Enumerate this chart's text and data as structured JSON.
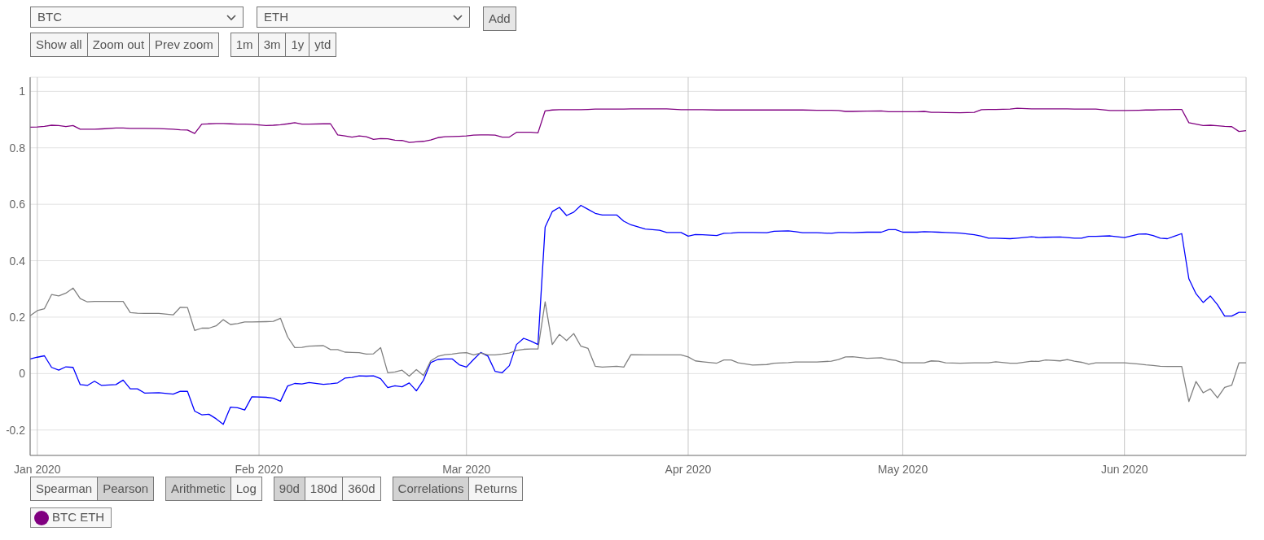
{
  "chart_data": {
    "type": "line",
    "x": [
      "2019-12-31",
      "2020-01-01",
      "2020-01-02",
      "2020-01-03",
      "2020-01-04",
      "2020-01-05",
      "2020-01-06",
      "2020-01-07",
      "2020-01-08",
      "2020-01-09",
      "2020-01-10",
      "2020-01-12",
      "2020-01-13",
      "2020-01-14",
      "2020-01-15",
      "2020-01-16",
      "2020-01-18",
      "2020-01-20",
      "2020-01-21",
      "2020-01-22",
      "2020-01-23",
      "2020-01-24",
      "2020-01-25",
      "2020-01-26",
      "2020-01-27",
      "2020-01-28",
      "2020-01-29",
      "2020-01-30",
      "2020-01-31",
      "2020-02-02",
      "2020-02-03",
      "2020-02-04",
      "2020-02-05",
      "2020-02-06",
      "2020-02-07",
      "2020-02-08",
      "2020-02-10",
      "2020-02-11",
      "2020-02-12",
      "2020-02-13",
      "2020-02-14",
      "2020-02-15",
      "2020-02-16",
      "2020-02-17",
      "2020-02-18",
      "2020-02-19",
      "2020-02-20",
      "2020-02-21",
      "2020-02-22",
      "2020-02-23",
      "2020-02-24",
      "2020-02-25",
      "2020-02-26",
      "2020-02-27",
      "2020-02-28",
      "2020-02-29",
      "2020-03-01",
      "2020-03-02",
      "2020-03-03",
      "2020-03-04",
      "2020-03-05",
      "2020-03-06",
      "2020-03-07",
      "2020-03-08",
      "2020-03-09",
      "2020-03-10",
      "2020-03-11",
      "2020-03-12",
      "2020-03-13",
      "2020-03-14",
      "2020-03-15",
      "2020-03-16",
      "2020-03-17",
      "2020-03-18",
      "2020-03-19",
      "2020-03-20",
      "2020-03-22",
      "2020-03-23",
      "2020-03-24",
      "2020-03-26",
      "2020-03-28",
      "2020-03-29",
      "2020-03-31",
      "2020-04-01",
      "2020-04-02",
      "2020-04-03",
      "2020-04-05",
      "2020-04-06",
      "2020-04-07",
      "2020-04-08",
      "2020-04-10",
      "2020-04-12",
      "2020-04-13",
      "2020-04-15",
      "2020-04-16",
      "2020-04-17",
      "2020-04-19",
      "2020-04-21",
      "2020-04-22",
      "2020-04-23",
      "2020-04-24",
      "2020-04-26",
      "2020-04-28",
      "2020-04-29",
      "2020-04-30",
      "2020-05-01",
      "2020-05-03",
      "2020-05-04",
      "2020-05-05",
      "2020-05-06",
      "2020-05-07",
      "2020-05-09",
      "2020-05-11",
      "2020-05-12",
      "2020-05-13",
      "2020-05-14",
      "2020-05-16",
      "2020-05-17",
      "2020-05-19",
      "2020-05-20",
      "2020-05-21",
      "2020-05-23",
      "2020-05-24",
      "2020-05-25",
      "2020-05-26",
      "2020-05-27",
      "2020-05-28",
      "2020-05-30",
      "2020-06-01",
      "2020-06-03",
      "2020-06-04",
      "2020-06-05",
      "2020-06-06",
      "2020-06-07",
      "2020-06-08",
      "2020-06-09",
      "2020-06-10",
      "2020-06-11",
      "2020-06-12",
      "2020-06-13",
      "2020-06-14",
      "2020-06-15",
      "2020-06-16",
      "2020-06-17",
      "2020-06-18"
    ],
    "series": [
      {
        "color": "#0000ff",
        "values": [
          0.052,
          0.058,
          0.063,
          0.022,
          0.012,
          0.024,
          0.022,
          -0.039,
          -0.042,
          -0.027,
          -0.042,
          -0.039,
          -0.023,
          -0.054,
          -0.054,
          -0.069,
          -0.068,
          -0.073,
          -0.063,
          -0.063,
          -0.133,
          -0.146,
          -0.144,
          -0.16,
          -0.18,
          -0.119,
          -0.121,
          -0.129,
          -0.082,
          -0.084,
          -0.087,
          -0.098,
          -0.044,
          -0.035,
          -0.037,
          -0.032,
          -0.038,
          -0.036,
          -0.033,
          -0.016,
          -0.014,
          -0.008,
          -0.009,
          -0.008,
          -0.018,
          -0.05,
          -0.043,
          -0.047,
          -0.033,
          -0.061,
          -0.023,
          0.039,
          0.05,
          0.052,
          0.052,
          0.031,
          0.023,
          0.05,
          0.075,
          0.062,
          0.008,
          0.003,
          0.028,
          0.103,
          0.125,
          0.115,
          0.103,
          0.519,
          0.574,
          0.589,
          0.56,
          0.572,
          0.596,
          0.582,
          0.568,
          0.562,
          0.562,
          0.54,
          0.527,
          0.512,
          0.508,
          0.5,
          0.5,
          0.487,
          0.493,
          0.492,
          0.489,
          0.497,
          0.498,
          0.5,
          0.5,
          0.499,
          0.504,
          0.506,
          0.503,
          0.499,
          0.499,
          0.497,
          0.5,
          0.5,
          0.499,
          0.501,
          0.501,
          0.51,
          0.51,
          0.501,
          0.501,
          0.503,
          0.502,
          0.501,
          0.5,
          0.498,
          0.492,
          0.487,
          0.48,
          0.48,
          0.478,
          0.48,
          0.485,
          0.482,
          0.483,
          0.484,
          0.482,
          0.48,
          0.48,
          0.486,
          0.486,
          0.488,
          0.482,
          0.494,
          0.495,
          0.489,
          0.48,
          0.478,
          0.487,
          0.496,
          0.336,
          0.283,
          0.252,
          0.275,
          0.244,
          0.204,
          0.204,
          0.217,
          0.217
        ]
      },
      {
        "color": "#808080",
        "values": [
          0.205,
          0.223,
          0.23,
          0.28,
          0.275,
          0.285,
          0.303,
          0.266,
          0.254,
          0.256,
          0.256,
          0.256,
          0.256,
          0.216,
          0.214,
          0.213,
          0.213,
          0.208,
          0.235,
          0.234,
          0.153,
          0.161,
          0.161,
          0.169,
          0.191,
          0.174,
          0.177,
          0.183,
          0.183,
          0.184,
          0.185,
          0.196,
          0.13,
          0.092,
          0.093,
          0.097,
          0.099,
          0.085,
          0.085,
          0.076,
          0.075,
          0.074,
          0.069,
          0.07,
          0.092,
          0.003,
          0.006,
          0.012,
          -0.009,
          0.014,
          -0.007,
          0.045,
          0.061,
          0.067,
          0.069,
          0.073,
          0.074,
          0.066,
          0.073,
          0.066,
          0.066,
          0.069,
          0.073,
          0.082,
          0.086,
          0.087,
          0.087,
          0.254,
          0.103,
          0.139,
          0.117,
          0.142,
          0.097,
          0.089,
          0.026,
          0.023,
          0.026,
          0.023,
          0.067,
          0.066,
          0.066,
          0.066,
          0.066,
          0.059,
          0.045,
          0.042,
          0.037,
          0.048,
          0.048,
          0.038,
          0.03,
          0.032,
          0.037,
          0.039,
          0.041,
          0.041,
          0.041,
          0.044,
          0.05,
          0.059,
          0.06,
          0.054,
          0.056,
          0.05,
          0.047,
          0.038,
          0.038,
          0.038,
          0.045,
          0.044,
          0.038,
          0.037,
          0.038,
          0.038,
          0.038,
          0.042,
          0.037,
          0.037,
          0.044,
          0.043,
          0.048,
          0.045,
          0.05,
          0.044,
          0.04,
          0.033,
          0.038,
          0.038,
          0.038,
          0.034,
          0.031,
          0.029,
          0.026,
          0.025,
          0.025,
          0.025,
          -0.099,
          -0.028,
          -0.068,
          -0.054,
          -0.086,
          -0.049,
          -0.041,
          0.038,
          0.038
        ]
      },
      {
        "name": "BTC ETH",
        "color": "#800080",
        "values": [
          0.873,
          0.874,
          0.876,
          0.88,
          0.879,
          0.875,
          0.879,
          0.866,
          0.866,
          0.866,
          0.867,
          0.87,
          0.87,
          0.869,
          0.869,
          0.869,
          0.868,
          0.866,
          0.864,
          0.863,
          0.851,
          0.884,
          0.885,
          0.886,
          0.886,
          0.885,
          0.884,
          0.884,
          0.883,
          0.879,
          0.88,
          0.882,
          0.885,
          0.889,
          0.884,
          0.884,
          0.885,
          0.885,
          0.846,
          0.842,
          0.838,
          0.842,
          0.839,
          0.83,
          0.833,
          0.832,
          0.827,
          0.826,
          0.819,
          0.821,
          0.823,
          0.828,
          0.836,
          0.839,
          0.84,
          0.841,
          0.842,
          0.845,
          0.846,
          0.846,
          0.845,
          0.838,
          0.838,
          0.855,
          0.855,
          0.855,
          0.853,
          0.931,
          0.934,
          0.935,
          0.935,
          0.935,
          0.935,
          0.936,
          0.937,
          0.937,
          0.937,
          0.937,
          0.938,
          0.938,
          0.938,
          0.938,
          0.935,
          0.935,
          0.935,
          0.935,
          0.934,
          0.934,
          0.934,
          0.934,
          0.934,
          0.934,
          0.934,
          0.934,
          0.934,
          0.934,
          0.933,
          0.933,
          0.932,
          0.929,
          0.929,
          0.93,
          0.931,
          0.928,
          0.928,
          0.928,
          0.928,
          0.929,
          0.926,
          0.926,
          0.925,
          0.924,
          0.926,
          0.935,
          0.936,
          0.936,
          0.937,
          0.94,
          0.938,
          0.938,
          0.938,
          0.938,
          0.938,
          0.937,
          0.937,
          0.937,
          0.937,
          0.932,
          0.932,
          0.933,
          0.934,
          0.934,
          0.935,
          0.935,
          0.936,
          0.936,
          0.889,
          0.884,
          0.879,
          0.88,
          0.878,
          0.876,
          0.875,
          0.858,
          0.861
        ]
      }
    ],
    "xlim": [
      "2019-12-31",
      "2020-06-18"
    ],
    "xticks": [
      {
        "value": "2020-01-01",
        "label": "Jan 2020"
      },
      {
        "value": "2020-02-01",
        "label": "Feb 2020"
      },
      {
        "value": "2020-03-01",
        "label": "Mar 2020"
      },
      {
        "value": "2020-04-01",
        "label": "Apr 2020"
      },
      {
        "value": "2020-05-01",
        "label": "May 2020"
      },
      {
        "value": "2020-06-01",
        "label": "Jun 2020"
      }
    ],
    "ylim": [
      -0.29,
      1.05
    ],
    "yticks": [
      -0.2,
      0,
      0.2,
      0.4,
      0.6,
      0.8,
      1
    ],
    "grid": true,
    "legend": "bottom left",
    "annotations": [
      "BTC",
      "ETH",
      "Add",
      "Show all",
      "Zoom out",
      "Prev zoom",
      "1m",
      "3m",
      "1y",
      "ytd",
      "Spearman",
      "Pearson",
      "Arithmetic",
      "Log",
      "90d",
      "180d",
      "360d",
      "Correlations",
      "Returns"
    ]
  }
}
